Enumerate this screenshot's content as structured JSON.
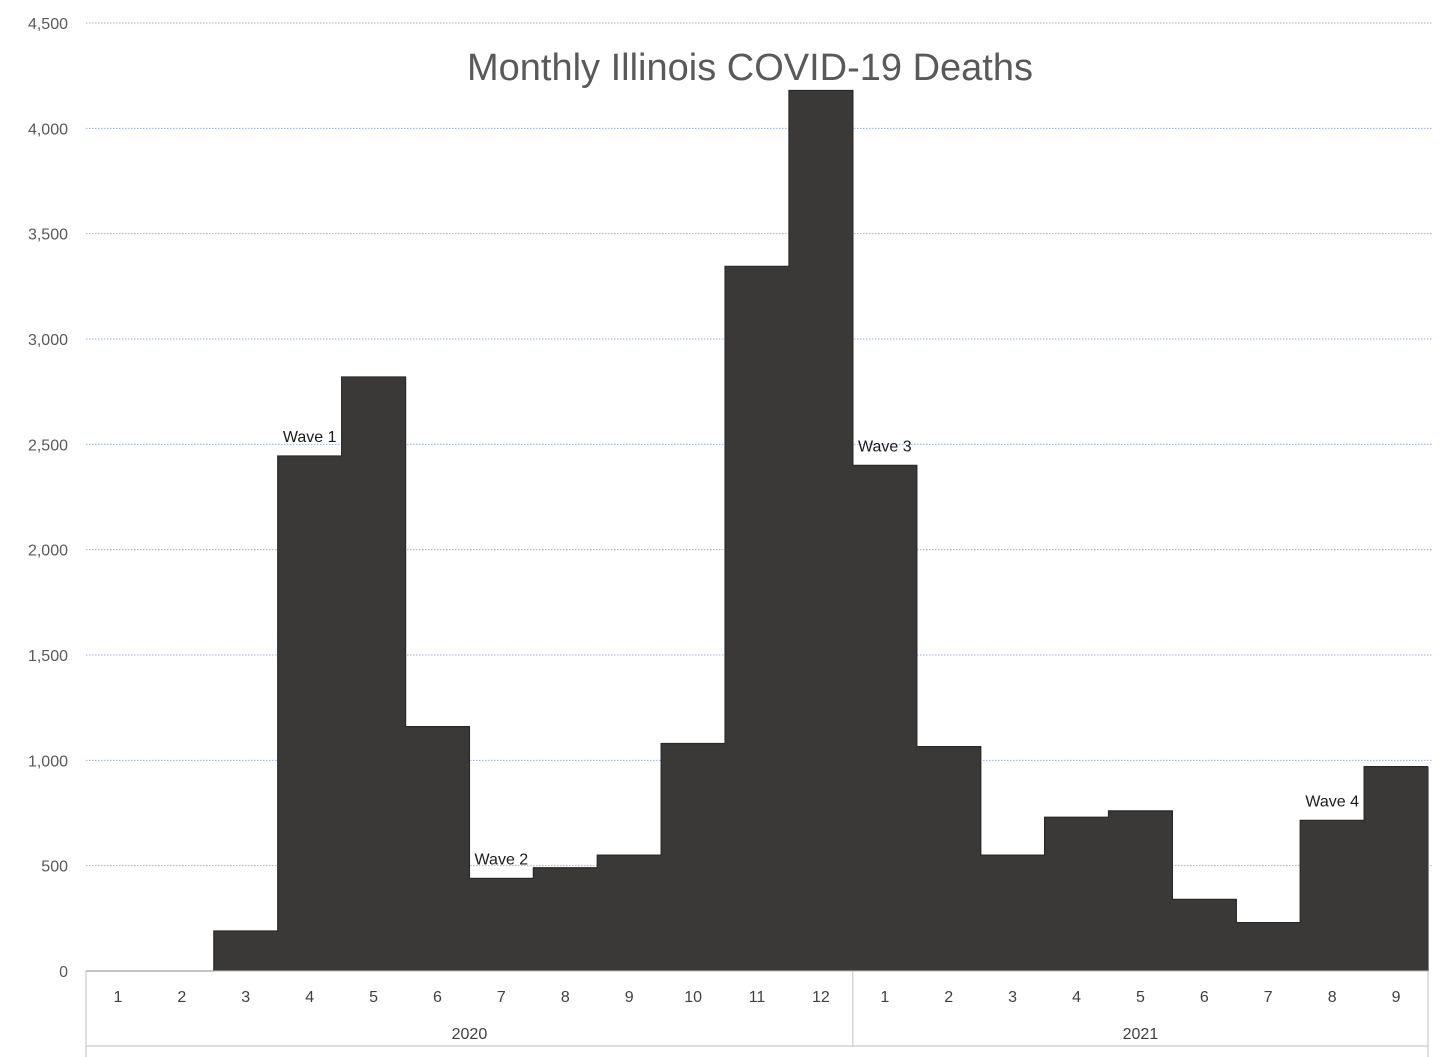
{
  "chart_data": {
    "type": "area",
    "title": "Monthly Illinois COVID-19 Deaths",
    "xlabel": "",
    "ylabel": "",
    "ylim": [
      0,
      4500
    ],
    "yticks": [
      0,
      500,
      1000,
      1500,
      2000,
      2500,
      3000,
      3500,
      4000,
      4500
    ],
    "ytick_labels": [
      "0",
      "500",
      "1,000",
      "1,500",
      "2,000",
      "2,500",
      "3,000",
      "3,500",
      "4,000",
      "4,500"
    ],
    "grid": true,
    "legend": "none",
    "fill_color": "#3a3937",
    "categories": [
      "1",
      "2",
      "3",
      "4",
      "5",
      "6",
      "7",
      "8",
      "9",
      "10",
      "11",
      "12",
      "1",
      "2",
      "3",
      "4",
      "5",
      "6",
      "7",
      "8",
      "9"
    ],
    "groups": [
      {
        "label": "2020",
        "count": 12
      },
      {
        "label": "2021",
        "count": 9
      }
    ],
    "values": [
      0,
      0,
      190,
      2445,
      2820,
      1160,
      440,
      490,
      550,
      1080,
      3345,
      4180,
      2400,
      1065,
      550,
      730,
      760,
      340,
      230,
      715,
      970
    ],
    "annotations": [
      {
        "text": "Wave 1",
        "index": 3
      },
      {
        "text": "Wave 2",
        "index": 6
      },
      {
        "text": "Wave 3",
        "index": 12
      },
      {
        "text": "Wave 4",
        "index": 19
      }
    ]
  }
}
